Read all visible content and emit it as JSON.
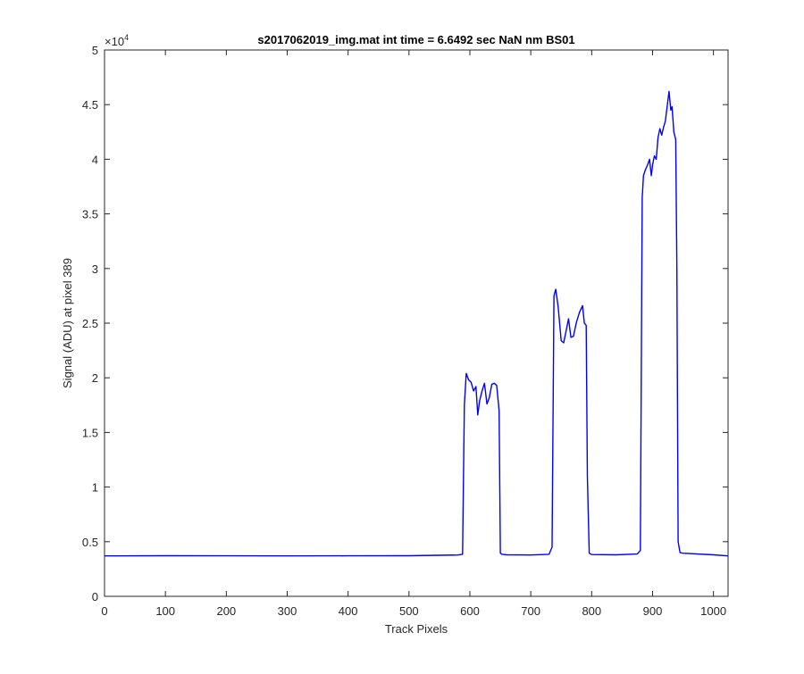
{
  "chart_data": {
    "type": "line",
    "title": "s2017062019_img.mat int time = 6.6492 sec  NaN nm BS01",
    "xlabel": "Track Pixels",
    "ylabel": "Signal (ADU) at pixel 389",
    "xlim": [
      0,
      1024
    ],
    "ylim": [
      0,
      50000
    ],
    "xticks": [
      0,
      100,
      200,
      300,
      400,
      500,
      600,
      700,
      800,
      900,
      1000
    ],
    "xtick_labels": [
      "0",
      "100",
      "200",
      "300",
      "400",
      "500",
      "600",
      "700",
      "800",
      "900",
      "1000"
    ],
    "yticks": [
      0,
      5000,
      10000,
      15000,
      20000,
      25000,
      30000,
      35000,
      40000,
      45000,
      50000
    ],
    "ytick_labels": [
      "0",
      "0.5",
      "1",
      "1.5",
      "2",
      "2.5",
      "3",
      "3.5",
      "4",
      "4.5",
      "5"
    ],
    "y_exponent_base": "×10",
    "y_exponent_power": "4",
    "grid": false,
    "line_color": "#0000ff",
    "series": [
      {
        "x": [
          0,
          100,
          200,
          300,
          400,
          500,
          580,
          588,
          591,
          594,
          598,
          602,
          606,
          610,
          613,
          616,
          620,
          624,
          628,
          632,
          636,
          640,
          644,
          648,
          650,
          653,
          660,
          700,
          730,
          735,
          738,
          741,
          745,
          750,
          754,
          758,
          762,
          766,
          770,
          775,
          780,
          785,
          788,
          791,
          793,
          796,
          800,
          840,
          875,
          880,
          883,
          885,
          888,
          892,
          895,
          898,
          900,
          903,
          906,
          909,
          912,
          915,
          918,
          921,
          924,
          927,
          930,
          932,
          935,
          938,
          940,
          942,
          945,
          950,
          1000,
          1024
        ],
        "y": [
          3700,
          3720,
          3710,
          3700,
          3710,
          3720,
          3780,
          3850,
          17500,
          20400,
          19800,
          19600,
          18800,
          19200,
          16600,
          17900,
          18800,
          19500,
          17600,
          18200,
          19400,
          19500,
          19300,
          17000,
          3950,
          3850,
          3800,
          3780,
          3850,
          4500,
          27500,
          28100,
          26500,
          23400,
          23200,
          24300,
          25400,
          23700,
          23800,
          25100,
          26000,
          26600,
          25000,
          24800,
          11000,
          3950,
          3820,
          3800,
          3870,
          4200,
          36500,
          38500,
          39000,
          39500,
          40000,
          38500,
          39500,
          40300,
          40000,
          42000,
          42800,
          42200,
          42900,
          43500,
          44800,
          46200,
          44500,
          44800,
          42500,
          41800,
          30000,
          5000,
          4000,
          3950,
          3800,
          3700
        ]
      }
    ]
  }
}
